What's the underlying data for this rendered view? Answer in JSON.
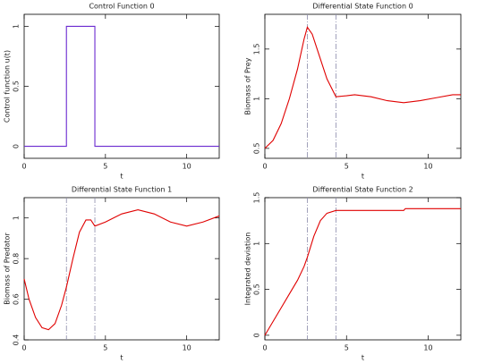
{
  "chart_data": [
    {
      "type": "line",
      "title": "Control Function 0",
      "xlabel": "t",
      "ylabel": "Control function u(t)",
      "x": [
        0,
        2.6,
        2.6,
        4.35,
        4.35,
        12
      ],
      "series": [
        {
          "color": "#6a2ad0",
          "values": [
            0,
            0,
            1,
            1,
            0,
            0
          ]
        }
      ],
      "xlim": [
        0,
        12
      ],
      "xticks": [
        0,
        5,
        10
      ],
      "ylim": [
        -0.1,
        1.1
      ],
      "yticks": [
        0,
        0.5,
        1
      ]
    },
    {
      "type": "line",
      "title": "Differential State Function 0",
      "xlabel": "t",
      "ylabel": "Biomass of Prey",
      "x": [
        0,
        0.5,
        1,
        1.5,
        2,
        2.4,
        2.6,
        2.9,
        3.3,
        3.8,
        4.35,
        5,
        5.5,
        6.5,
        7.5,
        8.5,
        9.5,
        10.5,
        11.5,
        12
      ],
      "series": [
        {
          "color": "#e00000",
          "values": [
            0.5,
            0.58,
            0.75,
            1.0,
            1.3,
            1.6,
            1.72,
            1.65,
            1.45,
            1.2,
            1.02,
            1.03,
            1.04,
            1.02,
            0.98,
            0.96,
            0.98,
            1.01,
            1.04,
            1.04
          ]
        }
      ],
      "xlim": [
        0,
        12
      ],
      "xticks": [
        0,
        5,
        10
      ],
      "ylim": [
        0.4,
        1.85
      ],
      "yticks": [
        0.5,
        1,
        1.5
      ],
      "vlines": [
        2.6,
        4.35
      ],
      "vline_color": "#8a8aaa"
    },
    {
      "type": "line",
      "title": "Differential State Function 1",
      "xlabel": "t",
      "ylabel": "Biomass of Predator",
      "x": [
        0,
        0.3,
        0.7,
        1.1,
        1.5,
        1.9,
        2.3,
        2.6,
        3,
        3.4,
        3.8,
        4.1,
        4.35,
        5,
        6,
        7,
        8,
        9,
        10,
        11,
        12
      ],
      "series": [
        {
          "color": "#e00000",
          "values": [
            0.7,
            0.6,
            0.51,
            0.46,
            0.45,
            0.48,
            0.57,
            0.66,
            0.8,
            0.93,
            0.99,
            0.99,
            0.96,
            0.98,
            1.02,
            1.04,
            1.02,
            0.98,
            0.96,
            0.98,
            1.01
          ]
        }
      ],
      "xlim": [
        0,
        12
      ],
      "xticks": [
        0,
        5,
        10
      ],
      "ylim": [
        0.4,
        1.1
      ],
      "yticks": [
        0.4,
        0.6,
        0.8,
        1
      ],
      "vlines": [
        2.6,
        4.35
      ],
      "vline_color": "#8a8aaa"
    },
    {
      "type": "line",
      "title": "Differential State Function 2",
      "xlabel": "t",
      "ylabel": "Integrated deviation",
      "x": [
        0,
        0.5,
        1,
        1.5,
        2,
        2.4,
        2.6,
        3,
        3.4,
        3.8,
        4.35,
        6,
        8.5,
        8.6,
        12
      ],
      "series": [
        {
          "color": "#e00000",
          "values": [
            0,
            0.15,
            0.3,
            0.45,
            0.6,
            0.75,
            0.85,
            1.08,
            1.25,
            1.33,
            1.36,
            1.36,
            1.36,
            1.38,
            1.38
          ]
        }
      ],
      "xlim": [
        0,
        12
      ],
      "xticks": [
        0,
        5,
        10
      ],
      "ylim": [
        -0.05,
        1.5
      ],
      "yticks": [
        0,
        0.5,
        1,
        1.5
      ],
      "vlines": [
        2.6,
        4.35
      ],
      "vline_color": "#8a8aaa"
    }
  ]
}
